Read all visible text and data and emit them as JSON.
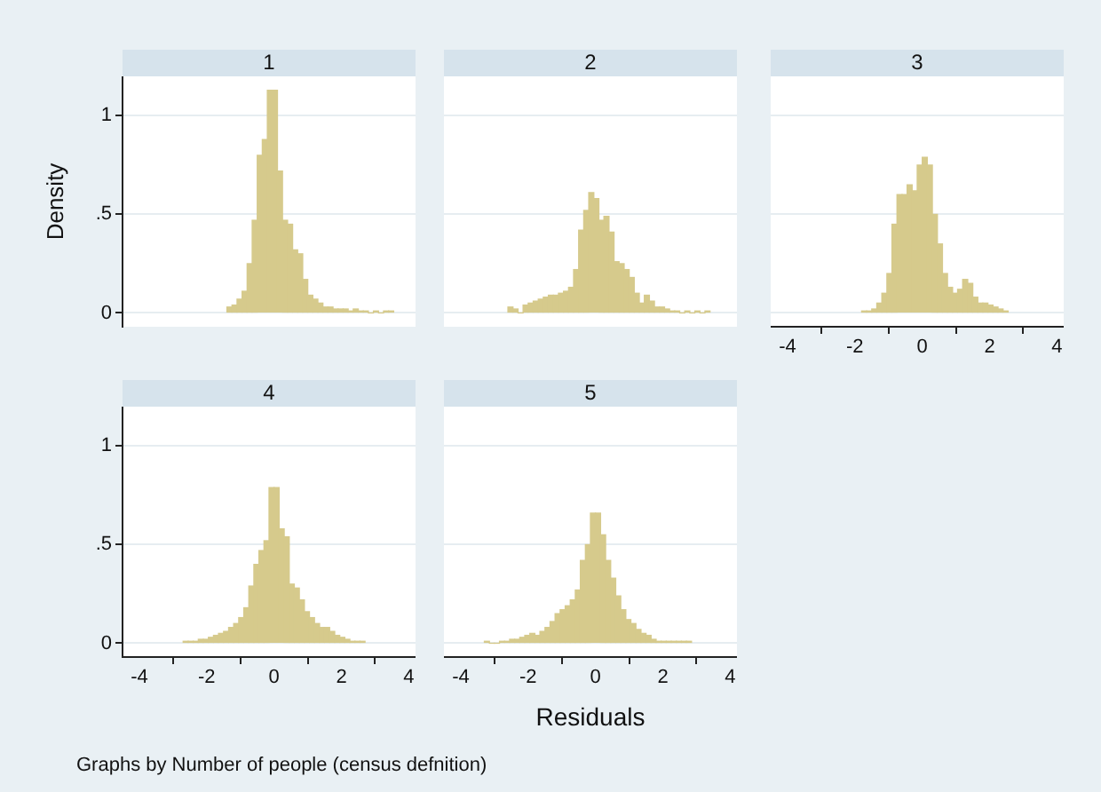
{
  "chart_data": [
    {
      "type": "histogram",
      "title": "1",
      "ylabel": "Density",
      "color": "#d6ca8c",
      "grid": "y",
      "tick_labels": "y",
      "xlim": [
        -4.5,
        4.2
      ],
      "xticks": [
        -4,
        -2,
        0,
        2,
        4
      ],
      "ylim": [
        -0.07,
        1.2
      ],
      "yticks": [
        0,
        {
          "value": 0.5,
          "label": ".5"
        },
        1
      ],
      "bins": [
        -1.4,
        -1.25,
        -1.1,
        -0.95,
        -0.8,
        -0.65,
        -0.5,
        -0.35,
        -0.2,
        -0.05,
        0.1,
        0.25,
        0.4,
        0.55,
        0.7,
        0.85,
        1,
        1.15,
        1.3,
        1.45,
        1.6,
        1.75,
        1.9,
        2.05,
        2.2,
        2.35,
        2.5,
        2.65,
        2.8,
        2.95,
        3.1,
        3.25,
        3.4,
        3.55
      ],
      "values": [
        0.03,
        0.04,
        0.07,
        0.11,
        0.25,
        0.47,
        0.8,
        0.88,
        1.13,
        1.13,
        0.72,
        0.47,
        0.45,
        0.32,
        0.3,
        0.17,
        0.09,
        0.07,
        0.05,
        0.03,
        0.03,
        0.02,
        0.02,
        0.02,
        0.01,
        0.02,
        0.01,
        0.01,
        0,
        0.01,
        0,
        0.01,
        0.01
      ]
    },
    {
      "type": "histogram",
      "title": "2",
      "color": "#d6ca8c",
      "grid": "y",
      "tick_labels": false,
      "xlim": [
        -4.5,
        4.2
      ],
      "xticks": [
        -4,
        -2,
        0,
        2,
        4
      ],
      "ylim": [
        -0.07,
        1.2
      ],
      "yticks": [
        0,
        0.5,
        1
      ],
      "bins": [
        -2.6,
        -2.45,
        -2.3,
        -2.15,
        -2,
        -1.85,
        -1.7,
        -1.55,
        -1.4,
        -1.25,
        -1.1,
        -0.95,
        -0.8,
        -0.65,
        -0.5,
        -0.35,
        -0.2,
        -0.05,
        0.1,
        0.25,
        0.4,
        0.55,
        0.7,
        0.85,
        1,
        1.15,
        1.3,
        1.45,
        1.6,
        1.75,
        1.9,
        2.05,
        2.2,
        2.35,
        2.5,
        2.65,
        2.8,
        2.95,
        3.1,
        3.25,
        3.4
      ],
      "values": [
        0.03,
        0.02,
        0,
        0.04,
        0.05,
        0.06,
        0.07,
        0.08,
        0.09,
        0.09,
        0.1,
        0.11,
        0.13,
        0.22,
        0.42,
        0.52,
        0.61,
        0.58,
        0.47,
        0.49,
        0.41,
        0.26,
        0.25,
        0.22,
        0.18,
        0.1,
        0.05,
        0.09,
        0.06,
        0.03,
        0.03,
        0.02,
        0.01,
        0.01,
        0,
        0.01,
        0,
        0.01,
        0,
        0.01
      ]
    },
    {
      "type": "histogram",
      "title": "3",
      "color": "#d6ca8c",
      "grid": "y",
      "tick_labels": "x",
      "xlim": [
        -4.5,
        4.2
      ],
      "xticks": [
        -4,
        -2,
        0,
        2,
        4
      ],
      "ylim": [
        -0.07,
        1.2
      ],
      "yticks": [
        0,
        0.5,
        1
      ],
      "bins": [
        -1.8,
        -1.65,
        -1.5,
        -1.35,
        -1.2,
        -1.05,
        -0.9,
        -0.75,
        -0.6,
        -0.45,
        -0.3,
        -0.15,
        0,
        0.15,
        0.3,
        0.45,
        0.6,
        0.75,
        0.9,
        1.05,
        1.2,
        1.35,
        1.5,
        1.65,
        1.8,
        1.95,
        2.1,
        2.25,
        2.4,
        2.55
      ],
      "values": [
        0.01,
        0.01,
        0.02,
        0.05,
        0.1,
        0.2,
        0.45,
        0.6,
        0.6,
        0.65,
        0.62,
        0.75,
        0.79,
        0.75,
        0.5,
        0.35,
        0.2,
        0.13,
        0.1,
        0.12,
        0.17,
        0.15,
        0.08,
        0.05,
        0.05,
        0.04,
        0.03,
        0.02,
        0.01
      ]
    },
    {
      "type": "histogram",
      "title": "4",
      "color": "#d6ca8c",
      "grid": "y",
      "xlim": [
        -4.5,
        4.2
      ],
      "xticks": [
        -4,
        -2,
        0,
        2,
        4
      ],
      "ylim": [
        -0.07,
        1.2
      ],
      "yticks": [
        0,
        {
          "value": 0.5,
          "label": ".5"
        },
        1
      ],
      "annotations": [
        "Graphs by Number of people (census defnition)"
      ],
      "bins": [
        -2.7,
        -2.55,
        -2.4,
        -2.25,
        -2.1,
        -1.95,
        -1.8,
        -1.65,
        -1.5,
        -1.35,
        -1.2,
        -1.05,
        -0.9,
        -0.75,
        -0.6,
        -0.45,
        -0.3,
        -0.15,
        0,
        0.15,
        0.3,
        0.45,
        0.6,
        0.75,
        0.9,
        1.05,
        1.2,
        1.35,
        1.5,
        1.65,
        1.8,
        1.95,
        2.1,
        2.25,
        2.4,
        2.55,
        2.7
      ],
      "values": [
        0.01,
        0.01,
        0.01,
        0.02,
        0.02,
        0.03,
        0.04,
        0.05,
        0.06,
        0.08,
        0.1,
        0.13,
        0.18,
        0.29,
        0.4,
        0.47,
        0.52,
        0.79,
        0.79,
        0.58,
        0.54,
        0.3,
        0.28,
        0.22,
        0.16,
        0.13,
        0.1,
        0.08,
        0.08,
        0.06,
        0.04,
        0.03,
        0.02,
        0.01,
        0.01,
        0.01
      ]
    },
    {
      "type": "histogram",
      "title": "5",
      "xlabel": "Residuals",
      "color": "#d6ca8c",
      "grid": "y",
      "tick_labels": "x",
      "xlim": [
        -4.5,
        4.2
      ],
      "xticks": [
        -4,
        -2,
        0,
        2,
        4
      ],
      "ylim": [
        -0.07,
        1.2
      ],
      "yticks": [
        0,
        0.5,
        1
      ],
      "bins": [
        -3.3,
        -3.15,
        -3,
        -2.85,
        -2.7,
        -2.55,
        -2.4,
        -2.25,
        -2.1,
        -1.95,
        -1.8,
        -1.65,
        -1.5,
        -1.35,
        -1.2,
        -1.05,
        -0.9,
        -0.75,
        -0.6,
        -0.45,
        -0.3,
        -0.15,
        0,
        0.15,
        0.3,
        0.45,
        0.6,
        0.75,
        0.9,
        1.05,
        1.2,
        1.35,
        1.5,
        1.65,
        1.8,
        1.95,
        2.1,
        2.25,
        2.4,
        2.55,
        2.7,
        2.85
      ],
      "values": [
        0.01,
        0,
        0,
        0.01,
        0.01,
        0.02,
        0.02,
        0.03,
        0.04,
        0.05,
        0.04,
        0.06,
        0.08,
        0.11,
        0.15,
        0.17,
        0.19,
        0.22,
        0.27,
        0.42,
        0.5,
        0.66,
        0.66,
        0.55,
        0.42,
        0.33,
        0.24,
        0.17,
        0.12,
        0.1,
        0.07,
        0.05,
        0.04,
        0.02,
        0.01,
        0.01,
        0.01,
        0.01,
        0.01,
        0.01,
        0.01
      ]
    }
  ]
}
